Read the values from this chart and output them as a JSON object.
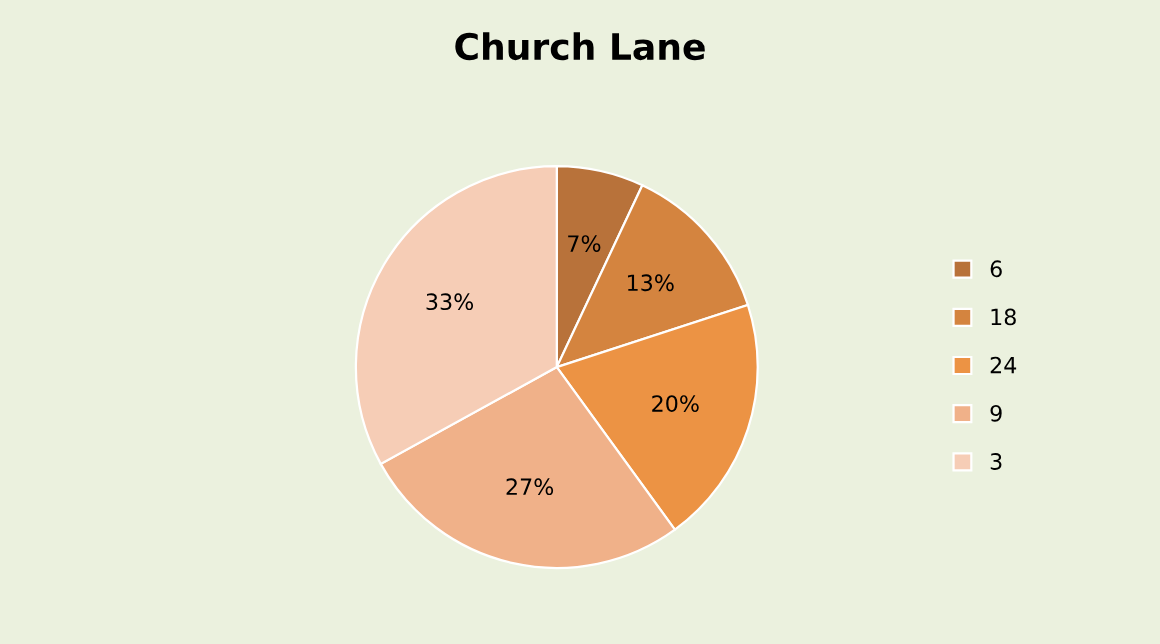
{
  "chart_data": {
    "type": "pie",
    "title": "Church Lane",
    "categories": [
      "6",
      "18",
      "24",
      "9",
      "3"
    ],
    "values": [
      7,
      13,
      20,
      27,
      33
    ],
    "value_labels": [
      "7%",
      "13%",
      "20%",
      "27%",
      "33%"
    ],
    "colors": [
      "#b8723a",
      "#d4843f",
      "#ec9344",
      "#f0b189",
      "#f6cdb6"
    ],
    "legend": "right"
  }
}
